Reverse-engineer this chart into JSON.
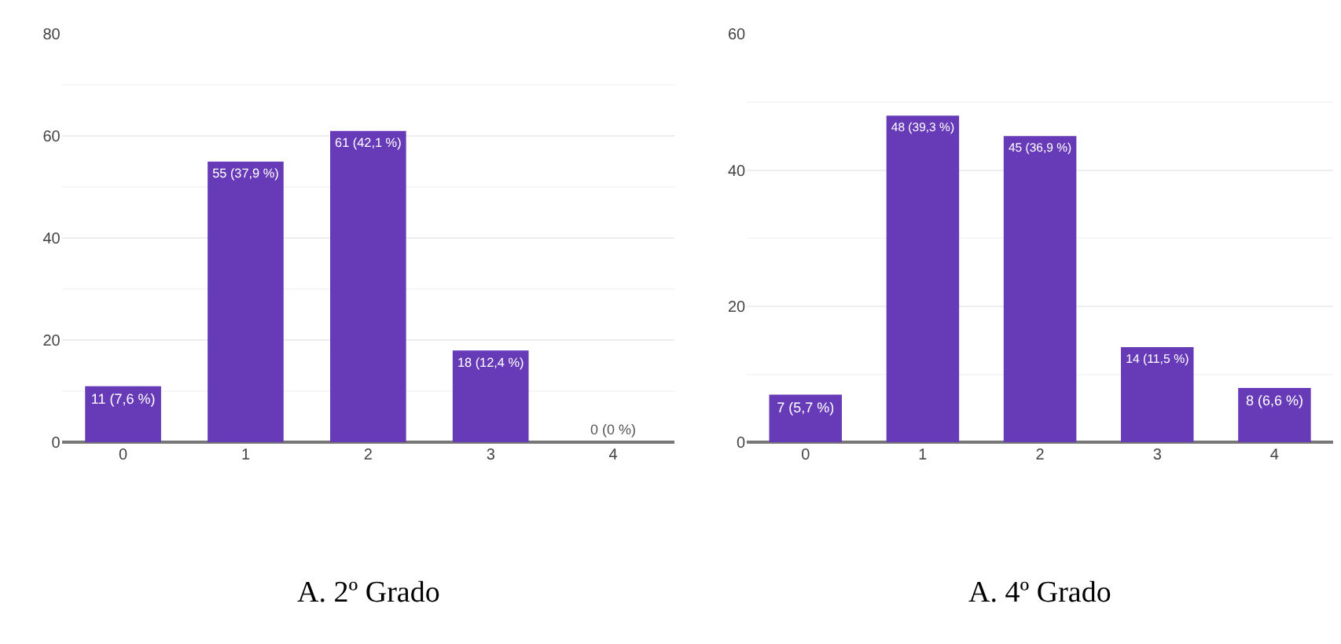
{
  "chart_data": [
    {
      "type": "bar",
      "categories": [
        "0",
        "1",
        "2",
        "3",
        "4"
      ],
      "values": [
        11,
        55,
        61,
        18,
        0
      ],
      "color": "#673ab7",
      "value_labels": [
        "11 (7,6 %)",
        "55 (37,9 %)",
        "61 (42,1 %)",
        "18 (12,4 %)",
        "0 (0 %)"
      ],
      "ylim": [
        0,
        80
      ],
      "yticks": [
        0,
        20,
        40,
        60,
        80
      ],
      "grid": "y",
      "annotations": [
        "A. 2º Grado"
      ]
    },
    {
      "type": "bar",
      "categories": [
        "0",
        "1",
        "2",
        "3",
        "4"
      ],
      "values": [
        7,
        48,
        45,
        14,
        8
      ],
      "color": "#673ab7",
      "value_labels": [
        "7 (5,7 %)",
        "48 (39,3 %)",
        "45 (36,9 %)",
        "14 (11,5 %)",
        "8 (6,6 %)"
      ],
      "ylim": [
        0,
        60
      ],
      "yticks": [
        0,
        20,
        40,
        60
      ],
      "grid": "y",
      "annotations": [
        "A. 4º Grado"
      ]
    }
  ]
}
